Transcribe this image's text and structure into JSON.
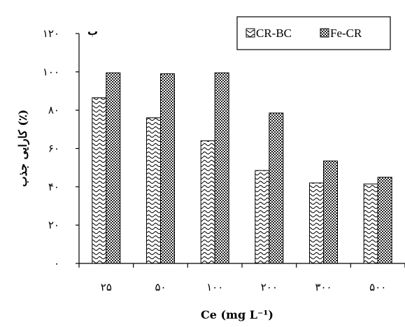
{
  "chart_data": {
    "type": "bar",
    "panel_label": "ب",
    "categories": [
      "۲۵",
      "۵۰",
      "۱۰۰",
      "۲۰۰",
      "۳۰۰",
      "۵۰۰"
    ],
    "series": [
      {
        "name": "CR-BC",
        "values": [
          86.5,
          76,
          64,
          48.5,
          42,
          41.5
        ],
        "color": "#ffffff",
        "pattern": "wave-hatch"
      },
      {
        "name": "Fe-CR",
        "values": [
          99.5,
          99,
          99.5,
          78.5,
          53.5,
          45
        ],
        "color": "#444444",
        "pattern": "crosshatch"
      }
    ],
    "ylim": [
      0,
      120
    ],
    "yticks": [
      "۰",
      "۲۰",
      "۴۰",
      "۶۰",
      "۸۰",
      "۱۰۰",
      "۱۲۰"
    ],
    "xlabel": "Ce (mg L⁻¹)",
    "ylabel": "کارایی جذب (٪)",
    "legend_position": "top-right",
    "grid": false
  }
}
